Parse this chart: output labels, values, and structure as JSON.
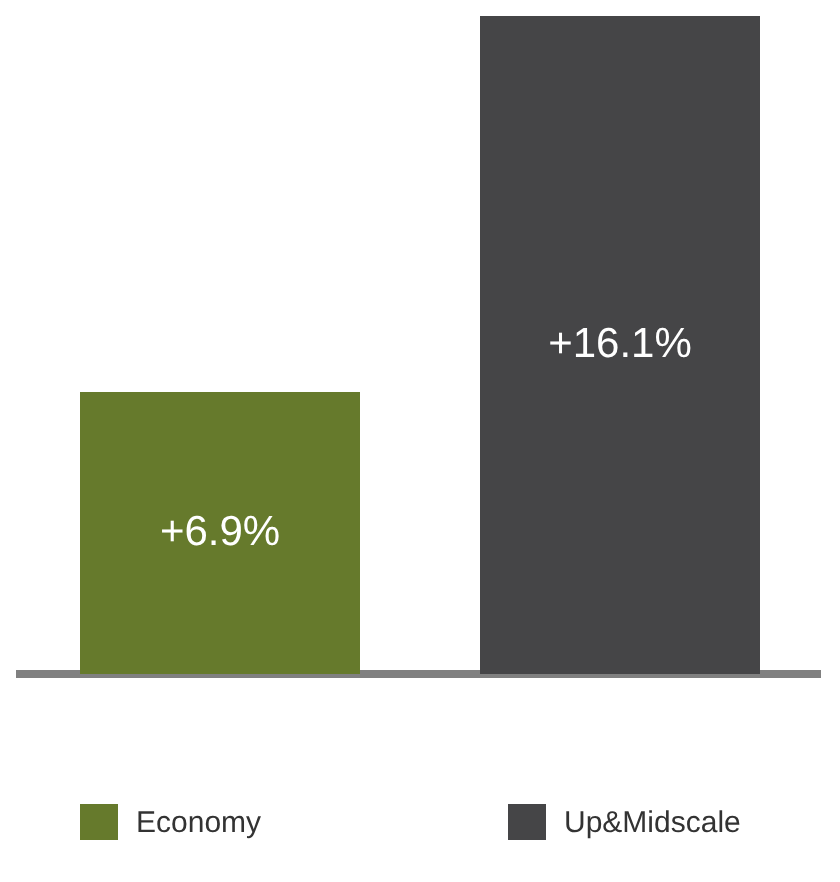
{
  "chart_data": {
    "type": "bar",
    "categories": [
      "Economy",
      "Up&Midscale"
    ],
    "values": [
      6.9,
      16.1
    ],
    "colors": [
      "#667a2c",
      "#454547"
    ],
    "value_labels": [
      "+6.9%",
      "+16.1%"
    ],
    "grid": false,
    "tick_labels": false
  }
}
